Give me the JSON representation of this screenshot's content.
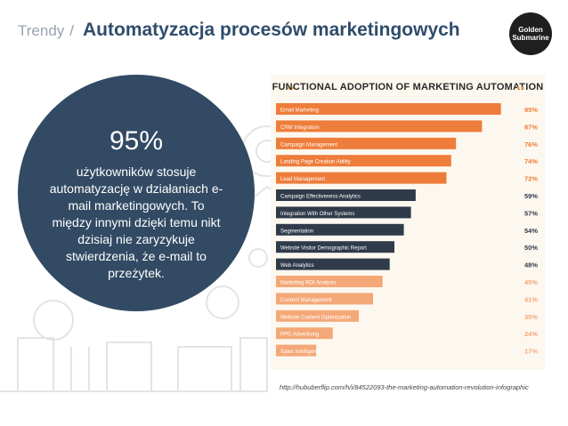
{
  "header": {
    "section": "Trendy",
    "separator": "/",
    "title": "Automatyzacja procesów marketingowych"
  },
  "logo": {
    "line1": "Golden",
    "line2": "Submarine"
  },
  "stat": {
    "percent": "95%",
    "text": "użytkowników stosuje automatyzację w działaniach e-mail marketingowych. To między innymi dzięki temu nikt dzisiaj nie zaryzykuje stwierdzenia, że e-mail to przeżytek."
  },
  "colors": {
    "dark_circle": "#324a63",
    "orange": "#ee7d3b",
    "dark_bar": "#2f3a4a",
    "light_orange": "#f4a878",
    "panel_bg": "#fdf8ef"
  },
  "source_url": "http://hububerflip.com/h/i/84522093-the-marketing-automation-revolution-infographic",
  "chart_data": {
    "type": "bar",
    "orientation": "horizontal",
    "title": "FUNCTIONAL ADOPTION OF MARKETING AUTOMATION",
    "categories": [
      "Email Marketing",
      "CRM Integration",
      "Campaign Management",
      "Landing Page Creation Ability",
      "Lead Management",
      "Campaign Effectiveness Analytics",
      "Integration With Other Systems",
      "Segmentation",
      "Website Visitor Demographic Report",
      "Web Analytics",
      "Marketing ROI Analysis",
      "Content Management",
      "Website Content Optimization",
      "PPC Advertising",
      "Sales Intelligence"
    ],
    "values": [
      95,
      87,
      76,
      74,
      72,
      59,
      57,
      54,
      50,
      48,
      45,
      41,
      35,
      24,
      17
    ],
    "labels": [
      "95%",
      "87%",
      "76%",
      "74%",
      "72%",
      "59%",
      "57%",
      "54%",
      "50%",
      "48%",
      "45%",
      "41%",
      "35%",
      "24%",
      "17%"
    ],
    "groups": [
      "orange",
      "orange",
      "orange",
      "orange",
      "orange",
      "dark",
      "dark",
      "dark",
      "dark",
      "dark",
      "light",
      "light",
      "light",
      "light",
      "light"
    ],
    "xlim": [
      0,
      100
    ]
  }
}
